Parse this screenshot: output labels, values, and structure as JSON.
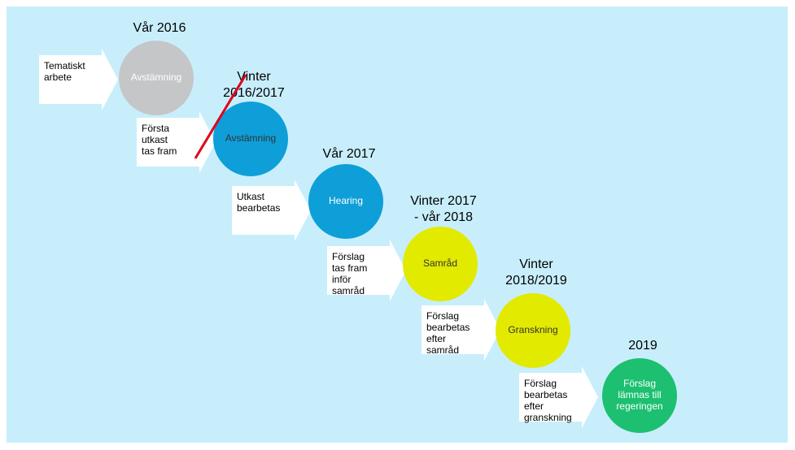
{
  "steps": [
    {
      "period": [
        "Vår 2016"
      ],
      "arrow_text": [
        "Tematiskt",
        "arbete"
      ],
      "circle_label": [
        "Avstämning"
      ],
      "color": "#c4c6c8",
      "label_color": "#ffffff"
    },
    {
      "period": [
        "Vinter",
        "2016/2017"
      ],
      "arrow_text": [
        "Första",
        "utkast",
        "tas fram"
      ],
      "circle_label": [
        "Avstämning"
      ],
      "color": "#0e9fd8",
      "label_color": "#333333"
    },
    {
      "period": [
        "Vår 2017"
      ],
      "arrow_text": [
        "Utkast",
        "bearbetas"
      ],
      "circle_label": [
        "Hearing"
      ],
      "color": "#0e9fd8",
      "label_color": "#ffffff"
    },
    {
      "period": [
        "Vinter 2017",
        "- vår 2018"
      ],
      "arrow_text": [
        "Förslag",
        "tas fram",
        "inför",
        "samråd"
      ],
      "circle_label": [
        "Samråd"
      ],
      "color": "#e2ea00",
      "label_color": "#333333"
    },
    {
      "period": [
        "Vinter",
        "2018/2019"
      ],
      "arrow_text": [
        "Förslag",
        "bearbetas",
        "efter",
        "samråd"
      ],
      "circle_label": [
        "Granskning"
      ],
      "color": "#e2ea00",
      "label_color": "#333333"
    },
    {
      "period": [
        "2019"
      ],
      "arrow_text": [
        "Förslag",
        "bearbetas",
        "efter",
        "granskning"
      ],
      "circle_label": [
        "Förslag",
        "lämnas till",
        "regeringen"
      ],
      "color": "#1cc070",
      "label_color": "#ffffff"
    }
  ]
}
